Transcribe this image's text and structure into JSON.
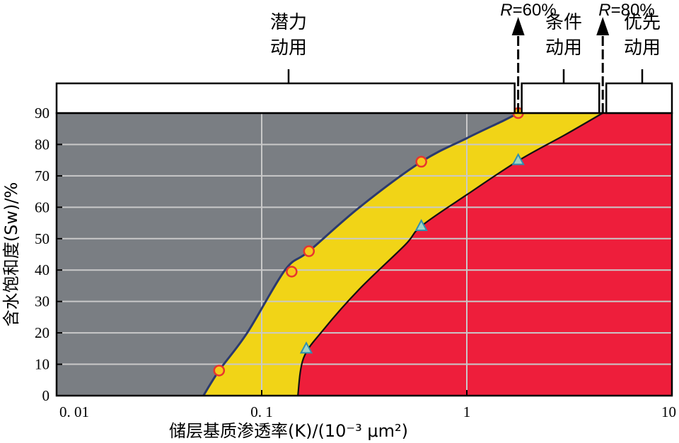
{
  "chart_data": {
    "type": "area",
    "xlabel": "储层基质渗透率(K)/(10⁻³ μm²)",
    "ylabel": "含水饱和度(Sw)/%",
    "xscale": "log",
    "xlim": [
      0.01,
      10
    ],
    "ylim": [
      0,
      90
    ],
    "x_ticks": [
      {
        "value": 0.01,
        "label": "0. 01"
      },
      {
        "value": 0.1,
        "label": "0. 1"
      },
      {
        "value": 1,
        "label": "1"
      },
      {
        "value": 10,
        "label": "10"
      }
    ],
    "y_ticks": [
      0,
      10,
      20,
      30,
      40,
      50,
      60,
      70,
      80,
      90
    ],
    "grid": true,
    "zones": [
      {
        "label_line1": "潜力",
        "label_line2": "动用",
        "color": "#7a7e83"
      },
      {
        "label_line1": "条件",
        "label_line2": "动用",
        "color": "#f1d417"
      },
      {
        "label_line1": "优先",
        "label_line2": "动用",
        "color": "#ee1e3b"
      }
    ],
    "boundaries": [
      {
        "name": "R=60%",
        "label": "R=60%",
        "line_color": "#2b3a6e",
        "curve": [
          [
            0.052,
            0
          ],
          [
            0.062,
            8
          ],
          [
            0.085,
            20
          ],
          [
            0.13,
            40
          ],
          [
            0.17,
            46
          ],
          [
            0.3,
            60
          ],
          [
            0.6,
            74.5
          ],
          [
            1.0,
            82
          ],
          [
            1.5,
            87.5
          ],
          [
            1.78,
            90
          ]
        ],
        "markers": [
          [
            0.062,
            8
          ],
          [
            0.14,
            39.5
          ],
          [
            0.17,
            46
          ],
          [
            0.6,
            74.5
          ],
          [
            1.78,
            90
          ]
        ],
        "marker_shape": "circle",
        "marker_fill": "#f6c91b",
        "marker_stroke": "#e8352e"
      },
      {
        "name": "R=80%",
        "label": "R=80%",
        "line_color": "#111111",
        "curve": [
          [
            0.15,
            0
          ],
          [
            0.16,
            12
          ],
          [
            0.2,
            21
          ],
          [
            0.3,
            34
          ],
          [
            0.5,
            48
          ],
          [
            0.6,
            54
          ],
          [
            1.0,
            64
          ],
          [
            1.8,
            75
          ],
          [
            3.0,
            83
          ],
          [
            4.6,
            90
          ]
        ],
        "markers": [
          [
            0.165,
            15
          ],
          [
            0.6,
            54
          ],
          [
            1.78,
            75
          ]
        ],
        "marker_shape": "triangle",
        "marker_fill": "#9fd4c4",
        "marker_stroke": "#2f8fb0"
      }
    ]
  }
}
